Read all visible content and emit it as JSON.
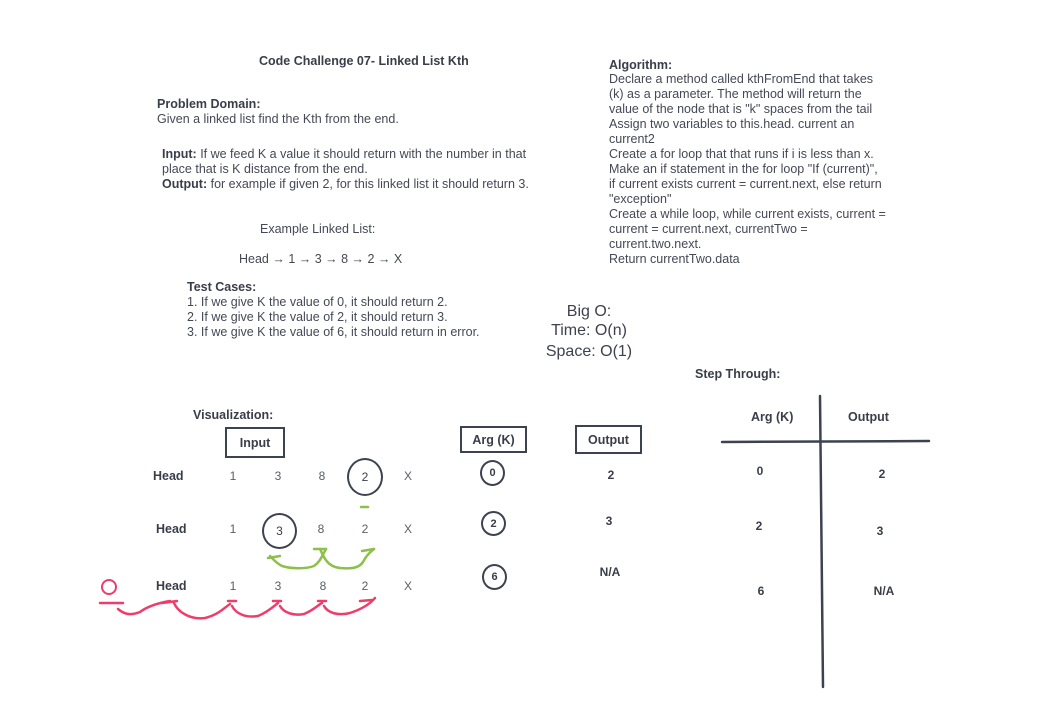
{
  "title": "Code Challenge 07- Linked List Kth",
  "problem_domain": {
    "heading": "Problem Domain:",
    "text": "Given a linked list find the Kth from the end."
  },
  "io": {
    "input_label": "Input:",
    "input_line1": " If we feed K a value it should return with the number in that",
    "input_line2": "place that is K distance from the end.",
    "output_label": "Output:",
    "output_text": " for example if given 2, for this linked list it should return 3."
  },
  "example": {
    "label": "Example Linked List:",
    "list": "Head → 1 → 3 → 8 → 2 → X"
  },
  "test_cases": {
    "heading": "Test Cases:",
    "items": [
      "1. If we give K the value of 0, it should return 2.",
      "2. If we give K the value of 2, it should return 3.",
      "3. If we give  K the value of 6, it should return in error."
    ]
  },
  "algorithm": {
    "heading": "Algorithm:",
    "lines": [
      "Declare a method called kthFromEnd that takes",
      "(k) as a parameter. The method will return the",
      "value of the node that is \"k\" spaces from the tail",
      "Assign two variables to this.head. current an",
      "current2",
      "Create a for loop that that runs if i is less than x.",
      "Make an if statement in the for loop \"If (current)\",",
      "if current exists current = current.next, else return",
      "\"exception\"",
      "Create a while loop, while current exists, current =",
      "current = current.next, currentTwo =",
      "current.two.next.",
      "Return currentTwo.data"
    ]
  },
  "big_o": {
    "heading": "Big O:",
    "time": "Time: O(n)",
    "space": "Space: O(1)"
  },
  "visualization": {
    "heading": "Visualization:",
    "input_box": "Input",
    "arg_box": "Arg (K)",
    "output_box": "Output",
    "head_label": "Head",
    "nodes": [
      "1",
      "3",
      "8",
      "2",
      "X"
    ],
    "args": [
      "0",
      "2",
      "6"
    ],
    "outputs": [
      "2",
      "3",
      "N/A"
    ],
    "pink_zero": "0",
    "colors": {
      "green": "#8cc04a",
      "pink": "#ee3d6a",
      "ink": "#3d4250"
    }
  },
  "step_through": {
    "heading": "Step Through:",
    "col1": "Arg (K)",
    "col2": "Output",
    "rows": [
      [
        "0",
        "2"
      ],
      [
        "2",
        "3"
      ],
      [
        "6",
        "N/A"
      ]
    ]
  }
}
